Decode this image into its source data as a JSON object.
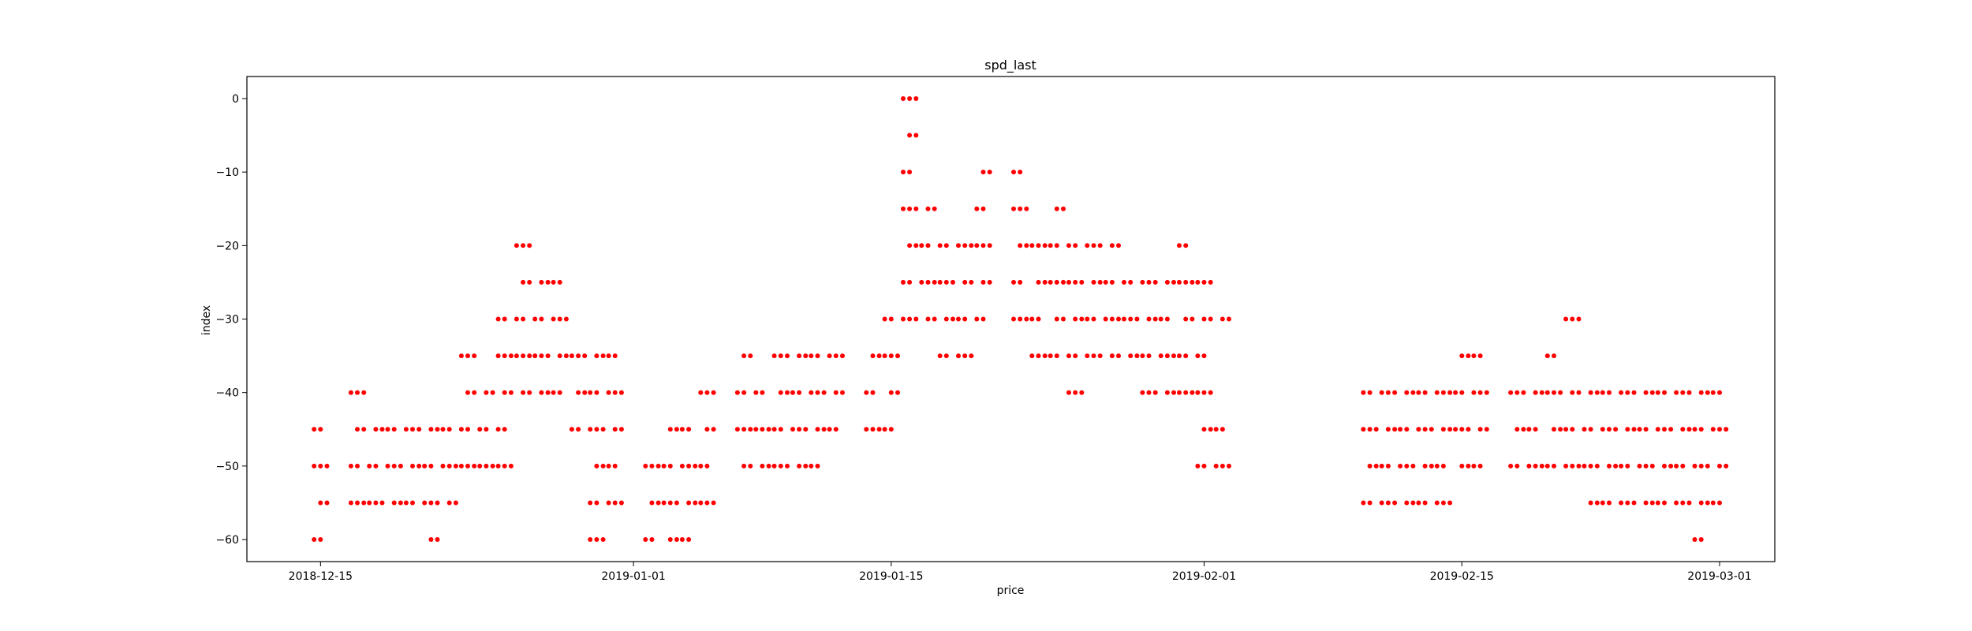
{
  "chart_data": {
    "type": "scatter",
    "title": "spd_last",
    "xlabel": "price",
    "ylabel": "index",
    "marker_color": "#ff0000",
    "grid": false,
    "legend": "none",
    "x_range": [
      "2018-12-11",
      "2019-03-04"
    ],
    "y_range": [
      -63,
      3
    ],
    "x_ticks": [
      "2018-12-15",
      "2019-01-01",
      "2019-01-15",
      "2019-02-01",
      "2019-02-15",
      "2019-03-01"
    ],
    "y_ticks": [
      0,
      -10,
      -20,
      -30,
      -40,
      -50,
      -60
    ],
    "columns": [
      {
        "x": "2018-12-15",
        "y": [
          -45,
          -50,
          -55,
          -60
        ]
      },
      {
        "x": "2018-12-17",
        "y": [
          -40,
          -45,
          -50,
          -55
        ]
      },
      {
        "x": "2018-12-18",
        "y": [
          -45,
          -50,
          -55
        ]
      },
      {
        "x": "2018-12-19",
        "y": [
          -45,
          -50,
          -55
        ]
      },
      {
        "x": "2018-12-20",
        "y": [
          -45,
          -50,
          -55
        ]
      },
      {
        "x": "2018-12-21",
        "y": [
          -45,
          -50,
          -55,
          -60
        ]
      },
      {
        "x": "2018-12-22",
        "y": [
          -45,
          -50,
          -55
        ]
      },
      {
        "x": "2018-12-23",
        "y": [
          -35,
          -40,
          -45,
          -50
        ]
      },
      {
        "x": "2018-12-24",
        "y": [
          -40,
          -45,
          -50
        ]
      },
      {
        "x": "2018-12-25",
        "y": [
          -30,
          -35,
          -40,
          -45,
          -50
        ]
      },
      {
        "x": "2018-12-26",
        "y": [
          -20,
          -25,
          -30,
          -35,
          -40
        ]
      },
      {
        "x": "2018-12-27",
        "y": [
          -25,
          -30,
          -35,
          -40
        ]
      },
      {
        "x": "2018-12-28",
        "y": [
          -25,
          -30,
          -35,
          -40
        ]
      },
      {
        "x": "2018-12-29",
        "y": [
          -35,
          -40,
          -45
        ]
      },
      {
        "x": "2018-12-30",
        "y": [
          -35,
          -40,
          -45,
          -50,
          -55,
          -60
        ]
      },
      {
        "x": "2018-12-31",
        "y": [
          -35,
          -40,
          -45,
          -50,
          -55
        ]
      },
      {
        "x": "2019-01-02",
        "y": [
          -50,
          -55,
          -60
        ]
      },
      {
        "x": "2019-01-03",
        "y": [
          -45,
          -50,
          -55,
          -60
        ]
      },
      {
        "x": "2019-01-04",
        "y": [
          -45,
          -50,
          -55,
          -60
        ]
      },
      {
        "x": "2019-01-05",
        "y": [
          -40,
          -45,
          -50,
          -55
        ]
      },
      {
        "x": "2019-01-07",
        "y": [
          -35,
          -40,
          -45,
          -50
        ]
      },
      {
        "x": "2019-01-08",
        "y": [
          -40,
          -45,
          -50
        ]
      },
      {
        "x": "2019-01-09",
        "y": [
          -35,
          -40,
          -45,
          -50
        ]
      },
      {
        "x": "2019-01-10",
        "y": [
          -35,
          -40,
          -45,
          -50
        ]
      },
      {
        "x": "2019-01-11",
        "y": [
          -35,
          -40,
          -45,
          -50
        ]
      },
      {
        "x": "2019-01-12",
        "y": [
          -35,
          -40,
          -45
        ]
      },
      {
        "x": "2019-01-14",
        "y": [
          -35,
          -40,
          -45
        ]
      },
      {
        "x": "2019-01-15",
        "y": [
          -30,
          -35,
          -40,
          -45
        ]
      },
      {
        "x": "2019-01-16",
        "y": [
          0,
          -5,
          -10,
          -15,
          -20,
          -25,
          -30
        ]
      },
      {
        "x": "2019-01-17",
        "y": [
          -15,
          -20,
          -25,
          -30
        ]
      },
      {
        "x": "2019-01-18",
        "y": [
          -20,
          -25,
          -30,
          -35
        ]
      },
      {
        "x": "2019-01-19",
        "y": [
          -20,
          -25,
          -30,
          -35
        ]
      },
      {
        "x": "2019-01-20",
        "y": [
          -10,
          -15,
          -20,
          -25,
          -30
        ]
      },
      {
        "x": "2019-01-22",
        "y": [
          -10,
          -15,
          -20,
          -25,
          -30
        ]
      },
      {
        "x": "2019-01-23",
        "y": [
          -20,
          -25,
          -30,
          -35
        ]
      },
      {
        "x": "2019-01-24",
        "y": [
          -15,
          -20,
          -25,
          -30,
          -35
        ]
      },
      {
        "x": "2019-01-25",
        "y": [
          -20,
          -25,
          -30,
          -35,
          -40
        ]
      },
      {
        "x": "2019-01-26",
        "y": [
          -20,
          -25,
          -30,
          -35
        ]
      },
      {
        "x": "2019-01-27",
        "y": [
          -20,
          -25,
          -30,
          -35
        ]
      },
      {
        "x": "2019-01-28",
        "y": [
          -25,
          -30,
          -35
        ]
      },
      {
        "x": "2019-01-29",
        "y": [
          -25,
          -30,
          -35,
          -40
        ]
      },
      {
        "x": "2019-01-30",
        "y": [
          -25,
          -30,
          -35,
          -40
        ]
      },
      {
        "x": "2019-01-31",
        "y": [
          -20,
          -25,
          -30,
          -35,
          -40
        ]
      },
      {
        "x": "2019-02-01",
        "y": [
          -25,
          -30,
          -35,
          -40,
          -45,
          -50
        ]
      },
      {
        "x": "2019-02-02",
        "y": [
          -30,
          -45,
          -50
        ]
      },
      {
        "x": "2019-02-10",
        "y": [
          -40,
          -45,
          -50,
          -55
        ]
      },
      {
        "x": "2019-02-11",
        "y": [
          -40,
          -45,
          -50,
          -55
        ]
      },
      {
        "x": "2019-02-12",
        "y": [
          -40,
          -45,
          -50,
          -55
        ]
      },
      {
        "x": "2019-02-13",
        "y": [
          -40,
          -45,
          -50,
          -55
        ]
      },
      {
        "x": "2019-02-14",
        "y": [
          -40,
          -45,
          -50,
          -55
        ]
      },
      {
        "x": "2019-02-15",
        "y": [
          -35,
          -40,
          -45,
          -50
        ]
      },
      {
        "x": "2019-02-16",
        "y": [
          -35,
          -40,
          -45,
          -50
        ]
      },
      {
        "x": "2019-02-18",
        "y": [
          -40,
          -45,
          -50
        ]
      },
      {
        "x": "2019-02-19",
        "y": [
          -40,
          -45,
          -50
        ]
      },
      {
        "x": "2019-02-20",
        "y": [
          -35,
          -40,
          -45,
          -50
        ]
      },
      {
        "x": "2019-02-21",
        "y": [
          -30,
          -40,
          -45,
          -50
        ]
      },
      {
        "x": "2019-02-22",
        "y": [
          -40,
          -45,
          -50,
          -55
        ]
      },
      {
        "x": "2019-02-23",
        "y": [
          -40,
          -45,
          -50,
          -55
        ]
      },
      {
        "x": "2019-02-24",
        "y": [
          -40,
          -45,
          -50,
          -55
        ]
      },
      {
        "x": "2019-02-25",
        "y": [
          -40,
          -45,
          -50,
          -55
        ]
      },
      {
        "x": "2019-02-26",
        "y": [
          -40,
          -45,
          -50,
          -55
        ]
      },
      {
        "x": "2019-02-27",
        "y": [
          -40,
          -45,
          -50,
          -55
        ]
      },
      {
        "x": "2019-02-28",
        "y": [
          -40,
          -45,
          -50,
          -55,
          -60
        ]
      },
      {
        "x": "2019-03-01",
        "y": [
          -40,
          -45,
          -50,
          -55
        ]
      }
    ]
  }
}
